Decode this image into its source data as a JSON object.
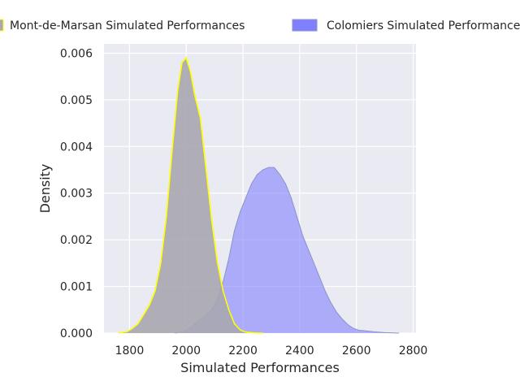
{
  "chart_data": {
    "type": "area",
    "title": "",
    "xlabel": "Simulated Performances",
    "ylabel": "Density",
    "xlim": [
      1710,
      2810
    ],
    "ylim": [
      0,
      0.0062
    ],
    "xticks": [
      "1800",
      "2000",
      "2200",
      "2400",
      "2600",
      "2800"
    ],
    "xtick_values": [
      1800,
      2000,
      2200,
      2400,
      2600,
      2800
    ],
    "yticks": [
      "0.000",
      "0.001",
      "0.002",
      "0.003",
      "0.004",
      "0.005",
      "0.006"
    ],
    "ytick_values": [
      0,
      0.001,
      0.002,
      0.003,
      0.004,
      0.005,
      0.006
    ],
    "grid": true,
    "background": "#eaeaf2",
    "legend_position": "top-center, above plot",
    "series": [
      {
        "name": "Mont-de-Marsan Simulated Performances",
        "fill": "#a9a7b0",
        "fill_opacity": 0.9,
        "line": "#ffff00",
        "x": [
          1760,
          1790,
          1810,
          1830,
          1850,
          1870,
          1890,
          1910,
          1930,
          1950,
          1970,
          1985,
          2000,
          2015,
          2030,
          2050,
          2070,
          2090,
          2110,
          2130,
          2150,
          2170,
          2190,
          2210,
          2240,
          2270
        ],
        "y": [
          0,
          3e-05,
          0.0001,
          0.0002,
          0.0004,
          0.0006,
          0.0009,
          0.0015,
          0.0025,
          0.0039,
          0.0052,
          0.0058,
          0.0059,
          0.0056,
          0.0051,
          0.0046,
          0.0035,
          0.0024,
          0.0015,
          0.0009,
          0.0005,
          0.0002,
          7e-05,
          2e-05,
          5e-06,
          0
        ]
      },
      {
        "name": "Colomiers Simulated Performances",
        "fill": "#8080ff",
        "fill_opacity": 0.6,
        "line": "#8a93c8",
        "x": [
          1960,
          1990,
          2010,
          2030,
          2050,
          2070,
          2090,
          2110,
          2130,
          2150,
          2170,
          2190,
          2210,
          2230,
          2250,
          2270,
          2290,
          2310,
          2330,
          2350,
          2370,
          2390,
          2410,
          2430,
          2450,
          2470,
          2490,
          2510,
          2530,
          2550,
          2570,
          2590,
          2610,
          2630,
          2660,
          2700,
          2750
        ],
        "y": [
          0,
          3e-05,
          0.0001,
          0.0002,
          0.0003,
          0.0004,
          0.0005,
          0.00075,
          0.0011,
          0.0016,
          0.0022,
          0.0026,
          0.0029,
          0.0032,
          0.0034,
          0.0035,
          0.00355,
          0.00355,
          0.0034,
          0.0032,
          0.0029,
          0.0025,
          0.0021,
          0.0018,
          0.0015,
          0.0012,
          0.0009,
          0.00065,
          0.00045,
          0.0003,
          0.00018,
          0.0001,
          6e-05,
          5e-05,
          3e-05,
          1e-05,
          0
        ]
      }
    ]
  }
}
